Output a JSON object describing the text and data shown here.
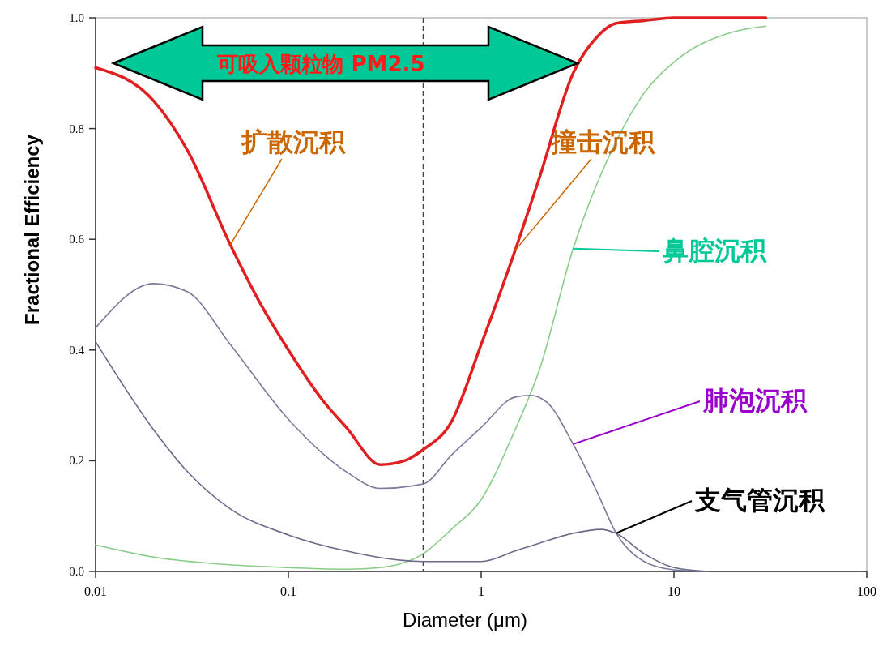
{
  "chart_data": {
    "type": "line",
    "xlabel": "Diameter (μm)",
    "ylabel": "Fractional Efficiency",
    "log": "x",
    "xlim": [
      0.01,
      100
    ],
    "xticks": [
      0.01,
      0.1,
      1,
      10,
      100
    ],
    "ylim": [
      0,
      1
    ],
    "yticks": [
      {
        "value": 0,
        "label": "0.0"
      },
      0.2,
      0.4,
      0.6,
      0.8,
      {
        "value": 1,
        "label": "1.0"
      }
    ],
    "grid": false,
    "line_style": "solid",
    "series": [
      {
        "color": "#e02020",
        "x": [
          0.01,
          0.02,
          0.03,
          0.05,
          0.07,
          0.1,
          0.15,
          0.2,
          0.3,
          0.4,
          0.5,
          0.7,
          1,
          1.5,
          2,
          3,
          4,
          5,
          7,
          10,
          30
        ],
        "values": [
          0.91,
          0.85,
          0.76,
          0.59,
          0.49,
          0.4,
          0.31,
          0.26,
          0.193,
          0.2,
          0.22,
          0.27,
          0.41,
          0.58,
          0.71,
          0.9,
          0.966,
          0.99,
          0.995,
          1,
          1
        ]
      },
      {
        "color": "#88cc88",
        "x": [
          0.01,
          0.02,
          0.05,
          0.1,
          0.2,
          0.3,
          0.5,
          0.7,
          1,
          1.5,
          2,
          3,
          5,
          7,
          10,
          20,
          30
        ],
        "values": [
          0.048,
          0.026,
          0.012,
          0.007,
          0.004,
          0.007,
          0.032,
          0.076,
          0.13,
          0.256,
          0.363,
          0.583,
          0.776,
          0.864,
          0.92,
          0.974,
          0.985
        ]
      },
      {
        "color": "#7a7a9a",
        "x": [
          0.01,
          0.02,
          0.03,
          0.05,
          0.1,
          0.2,
          0.3,
          0.5,
          0.7,
          1,
          1.5,
          1.8,
          2.2,
          3,
          4,
          5,
          7,
          10,
          15
        ],
        "values": [
          0.44,
          0.52,
          0.505,
          0.41,
          0.275,
          0.18,
          0.15,
          0.158,
          0.21,
          0.26,
          0.315,
          0.318,
          0.305,
          0.23,
          0.143,
          0.07,
          0.018,
          0.003,
          0
        ]
      },
      {
        "color": "#6a6a8a",
        "x": [
          0.01,
          0.02,
          0.03,
          0.05,
          0.1,
          0.2,
          0.5,
          1,
          1.5,
          2,
          3,
          4.2,
          5,
          7,
          10,
          15
        ],
        "values": [
          0.415,
          0.256,
          0.18,
          0.113,
          0.066,
          0.037,
          0.018,
          0.018,
          0.037,
          0.051,
          0.069,
          0.076,
          0.069,
          0.032,
          0.007,
          0
        ]
      }
    ],
    "ref_lines": [
      {
        "axis": "x",
        "value": 0.5,
        "line_style": "dashed",
        "color": "#444444"
      }
    ],
    "annotations": [
      "可吸入颗粒物 PM2.5",
      {
        "text": "扩散沉积",
        "x": 0.05,
        "y": 0.59
      },
      {
        "text": "撞击沉积",
        "x": 1.5,
        "y": 0.58
      },
      {
        "text": "鼻腔沉积",
        "x": 3,
        "y": 0.583
      },
      {
        "text": "肺泡沉积",
        "x": 3,
        "y": 0.23
      },
      {
        "text": "支气管沉积",
        "x": 5,
        "y": 0.069
      }
    ]
  }
}
